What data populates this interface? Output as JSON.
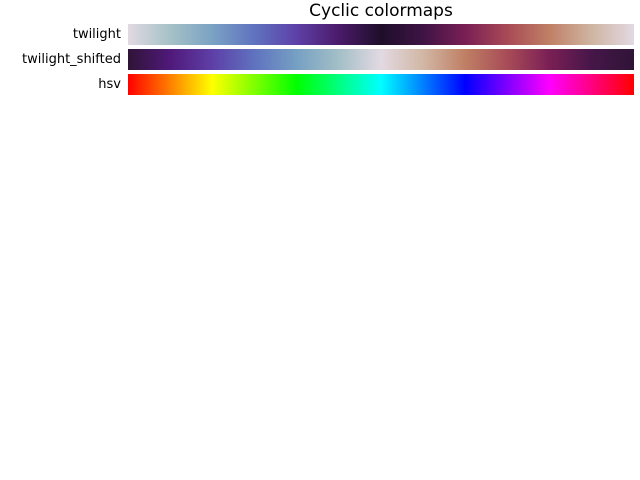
{
  "chart_data": {
    "type": "heatmap",
    "title": "Cyclic colormaps",
    "colormaps": [
      {
        "name": "twilight",
        "stops": [
          "#e2d9e2",
          "#a6c1c7",
          "#7aa2c3",
          "#5f73bf",
          "#5e40a8",
          "#4b1a6a",
          "#1e0e2a",
          "#3e1445",
          "#7a1f55",
          "#a84a56",
          "#c08066",
          "#cfb5a2",
          "#e2d9e2"
        ]
      },
      {
        "name": "twilight_shifted",
        "stops": [
          "#2f1436",
          "#50197a",
          "#5e3fa7",
          "#5f72bf",
          "#76a0c3",
          "#a3bfc7",
          "#e2d9e2",
          "#d1b7a5",
          "#bf7f64",
          "#a84b57",
          "#7a1f55",
          "#461649",
          "#2f1436"
        ]
      },
      {
        "name": "hsv",
        "stops": [
          "#ff0000",
          "#ffff00",
          "#00ff00",
          "#00ffff",
          "#0000ff",
          "#ff00ff",
          "#ff0000"
        ]
      }
    ]
  }
}
